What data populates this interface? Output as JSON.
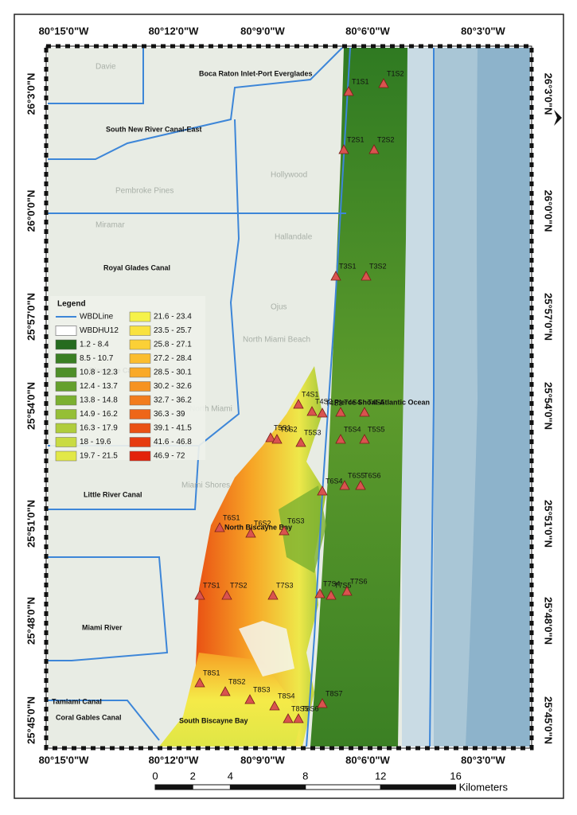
{
  "frame": {
    "top_lon_labels": [
      "80°15'0\"W",
      "80°12'0\"W",
      "80°9'0\"W",
      "80°6'0\"W",
      "80°3'0\"W"
    ],
    "bottom_lon_labels": [
      "80°15'0\"W",
      "80°12'0\"W",
      "80°9'0\"W",
      "80°6'0\"W",
      "80°3'0\"W"
    ],
    "left_lat_labels": [
      "26°3'0\"N",
      "26°0'0\"N",
      "25°57'0\"N",
      "25°54'0\"N",
      "25°51'0\"N",
      "25°48'0\"N",
      "25°45'0\"N"
    ],
    "right_lat_labels": [
      "26°3'0\"N",
      "26°0'0\"N",
      "25°57'0\"N",
      "25°54'0\"N",
      "25°51'0\"N",
      "25°48'0\"N",
      "25°45'0\"N"
    ]
  },
  "basemap_labels": [
    "Davie",
    "Hollywood",
    "Pembroke Pines",
    "Miramar",
    "Hallandale",
    "Ojus",
    "North Miami Beach",
    "North Miami",
    "Miami Shores"
  ],
  "region_labels": [
    "Boca Raton Inlet-Port Everglades",
    "South New River Canal-East",
    "Royal Glades Canal",
    "Biscayne Canal",
    "Little River Canal",
    "Pierce Shoal-Atlantic Ocean",
    "North Biscayne Bay",
    "Miami River",
    "Tamiami Canal",
    "Coral Gables Canal",
    "South Biscayne Bay"
  ],
  "stations": [
    "T1S1",
    "T1S2",
    "T2S1",
    "T2S2",
    "T3S1",
    "T3S2",
    "T4S1",
    "T4S2",
    "T4S3",
    "T4S4",
    "T4S5",
    "T5S1",
    "T5S2",
    "T5S3",
    "T5S4",
    "T5S5",
    "T6S1",
    "T6S2",
    "T6S3",
    "T6S4",
    "T6S5",
    "T6S6",
    "T7S1",
    "T7S2",
    "T7S3",
    "T7S4",
    "T7S5",
    "T7S6",
    "T8S1",
    "T8S2",
    "T8S3",
    "T8S4",
    "T8S5",
    "T8S6",
    "T8S7"
  ],
  "legend": {
    "title": "Legend",
    "boundary_items": [
      "WBDLine",
      "WBDHU12"
    ],
    "classes": [
      {
        "label": "1.2 - 8.4",
        "color": "#256b1f"
      },
      {
        "label": "8.5 - 10.7",
        "color": "#3a7f23"
      },
      {
        "label": "10.8 - 12.3",
        "color": "#4e8f28"
      },
      {
        "label": "12.4 - 13.7",
        "color": "#64a02c"
      },
      {
        "label": "13.8 - 14.8",
        "color": "#7bb030"
      },
      {
        "label": "14.9 - 16.2",
        "color": "#95bf36"
      },
      {
        "label": "16.3 - 17.9",
        "color": "#b0cd3c"
      },
      {
        "label": "18 - 19.6",
        "color": "#c9db42"
      },
      {
        "label": "19.7 - 21.5",
        "color": "#e2e847"
      },
      {
        "label": "21.6 - 23.4",
        "color": "#f5f24a"
      },
      {
        "label": "23.5 - 25.7",
        "color": "#f9e23f"
      },
      {
        "label": "25.8 - 27.1",
        "color": "#fbd036"
      },
      {
        "label": "27.2 - 28.4",
        "color": "#fbbd2e"
      },
      {
        "label": "28.5 - 30.1",
        "color": "#f9a927"
      },
      {
        "label": "30.2 - 32.6",
        "color": "#f69322"
      },
      {
        "label": "32.7 - 36.2",
        "color": "#f27c1d"
      },
      {
        "label": "36.3 - 39",
        "color": "#ee6618"
      },
      {
        "label": "39.1 - 41.5",
        "color": "#ea5114"
      },
      {
        "label": "41.6 - 46.8",
        "color": "#e63c10"
      },
      {
        "label": "46.9 - 72",
        "color": "#e3230b"
      }
    ]
  },
  "scale_bar": {
    "ticks": [
      0,
      2,
      4,
      8,
      12,
      16
    ],
    "unit": "Kilometers"
  }
}
